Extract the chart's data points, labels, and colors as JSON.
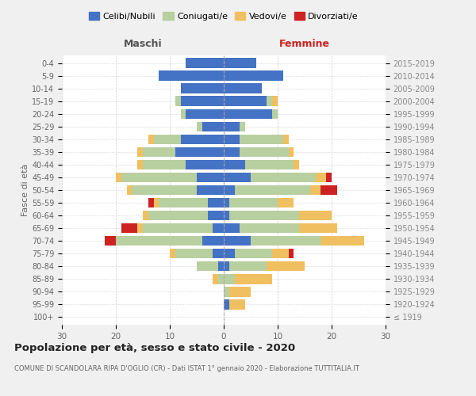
{
  "age_groups": [
    "100+",
    "95-99",
    "90-94",
    "85-89",
    "80-84",
    "75-79",
    "70-74",
    "65-69",
    "60-64",
    "55-59",
    "50-54",
    "45-49",
    "40-44",
    "35-39",
    "30-34",
    "25-29",
    "20-24",
    "15-19",
    "10-14",
    "5-9",
    "0-4"
  ],
  "birth_years": [
    "≤ 1919",
    "1920-1924",
    "1925-1929",
    "1930-1934",
    "1935-1939",
    "1940-1944",
    "1945-1949",
    "1950-1954",
    "1955-1959",
    "1960-1964",
    "1965-1969",
    "1970-1974",
    "1975-1979",
    "1980-1984",
    "1985-1989",
    "1990-1994",
    "1995-1999",
    "2000-2004",
    "2005-2009",
    "2010-2014",
    "2015-2019"
  ],
  "colors": {
    "celibi": "#4472c4",
    "coniugati": "#b8cfa0",
    "vedovi": "#f0c060",
    "divorziati": "#cc2222"
  },
  "maschi": {
    "celibi": [
      0,
      0,
      0,
      0,
      1,
      2,
      4,
      2,
      3,
      3,
      5,
      5,
      7,
      9,
      8,
      4,
      7,
      8,
      8,
      12,
      7
    ],
    "coniugati": [
      0,
      0,
      0,
      1,
      4,
      7,
      16,
      13,
      11,
      9,
      12,
      14,
      8,
      6,
      5,
      1,
      1,
      1,
      0,
      0,
      0
    ],
    "vedovi": [
      0,
      0,
      0,
      1,
      0,
      1,
      0,
      1,
      1,
      1,
      1,
      1,
      1,
      1,
      1,
      0,
      0,
      0,
      0,
      0,
      0
    ],
    "divorziati": [
      0,
      0,
      0,
      0,
      0,
      0,
      2,
      3,
      0,
      1,
      0,
      0,
      0,
      0,
      0,
      0,
      0,
      0,
      0,
      0,
      0
    ]
  },
  "femmine": {
    "celibi": [
      0,
      1,
      0,
      0,
      1,
      2,
      5,
      3,
      1,
      1,
      2,
      5,
      4,
      3,
      3,
      3,
      9,
      8,
      7,
      11,
      6
    ],
    "coniugati": [
      0,
      0,
      1,
      2,
      7,
      7,
      13,
      11,
      13,
      9,
      14,
      12,
      9,
      9,
      8,
      1,
      1,
      1,
      0,
      0,
      0
    ],
    "vedovi": [
      0,
      3,
      4,
      7,
      7,
      3,
      8,
      7,
      6,
      3,
      2,
      2,
      1,
      1,
      1,
      0,
      0,
      1,
      0,
      0,
      0
    ],
    "divorziati": [
      0,
      0,
      0,
      0,
      0,
      1,
      0,
      0,
      0,
      0,
      3,
      1,
      0,
      0,
      0,
      0,
      0,
      0,
      0,
      0,
      0
    ]
  },
  "xlim": 30,
  "title": "Popolazione per età, sesso e stato civile - 2020",
  "subtitle": "COMUNE DI SCANDOLARA RIPA D'OGLIO (CR) - Dati ISTAT 1° gennaio 2020 - Elaborazione TUTTITALIA.IT",
  "ylabel_left": "Fasce di età",
  "xlabel_maschi": "Maschi",
  "xlabel_femmine": "Femmine",
  "bg_color": "#f0f0f0",
  "plot_bg": "#ffffff",
  "legend_labels": [
    "Celibi/Nubili",
    "Coniugati/e",
    "Vedovi/e",
    "Divorziati/e"
  ]
}
